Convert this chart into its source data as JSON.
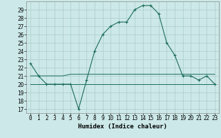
{
  "xlabel": "Humidex (Indice chaleur)",
  "x": [
    0,
    1,
    2,
    3,
    4,
    5,
    6,
    7,
    8,
    9,
    10,
    11,
    12,
    13,
    14,
    15,
    16,
    17,
    18,
    19,
    20,
    21,
    22,
    23
  ],
  "y_main": [
    22.5,
    21,
    20,
    20,
    20,
    20,
    17,
    20.5,
    24,
    26,
    27,
    27.5,
    27.5,
    29,
    29.5,
    29.5,
    28.5,
    25,
    23.5,
    21,
    21,
    20.5,
    21,
    20
  ],
  "y_flat1": [
    21,
    21,
    21,
    21,
    21,
    21.2,
    21.2,
    21.2,
    21.2,
    21.2,
    21.2,
    21.2,
    21.2,
    21.2,
    21.2,
    21.2,
    21.2,
    21.2,
    21.2,
    21.2,
    21.2,
    21.2,
    21.2,
    21.2
  ],
  "y_flat2": [
    20,
    20,
    20,
    20,
    20,
    20,
    20,
    20,
    20,
    20,
    20,
    20,
    20,
    20,
    20,
    20,
    20,
    20,
    20,
    20,
    20,
    20,
    20,
    20
  ],
  "line_color": "#1a6b5a",
  "bg_color": "#cce8e8",
  "grid_color": "#aacccc",
  "ylim": [
    16.5,
    30
  ],
  "yticks": [
    17,
    18,
    19,
    20,
    21,
    22,
    23,
    24,
    25,
    26,
    27,
    28,
    29
  ],
  "xticks": [
    0,
    1,
    2,
    3,
    4,
    5,
    6,
    7,
    8,
    9,
    10,
    11,
    12,
    13,
    14,
    15,
    16,
    17,
    18,
    19,
    20,
    21,
    22,
    23
  ],
  "label_fontsize": 6.5,
  "tick_fontsize": 5.5
}
